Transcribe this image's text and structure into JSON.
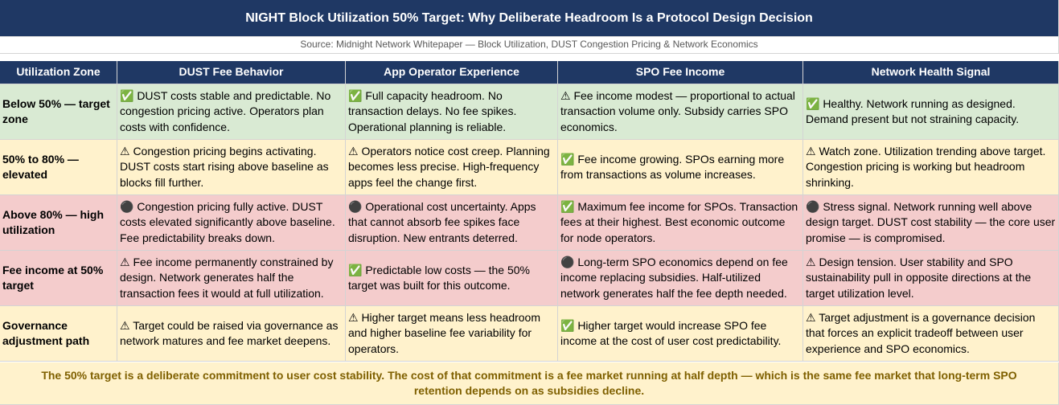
{
  "header": {
    "title": "NIGHT Block Utilization 50% Target: Why Deliberate Headroom Is a Protocol Design Decision",
    "source": "Source: Midnight Network Whitepaper — Block Utilization, DUST Congestion Pricing & Network Economics"
  },
  "table": {
    "columns": [
      "Utilization Zone",
      "DUST Fee Behavior",
      "App Operator Experience",
      "SPO Fee Income",
      "Network Health Signal"
    ],
    "rows": [
      [
        "Below 50% — target zone",
        "✅ DUST costs stable and predictable. No congestion pricing active. Operators plan costs with confidence.",
        "✅ Full capacity headroom. No transaction delays. No fee spikes. Operational planning is reliable.",
        "⚠ Fee income modest — proportional to actual transaction volume only. Subsidy carries SPO economics.",
        "✅ Healthy. Network running as designed. Demand present but not straining capacity."
      ],
      [
        "50% to 80% — elevated",
        "⚠ Congestion pricing begins activating. DUST costs start rising above baseline as blocks fill further.",
        "⚠ Operators notice cost creep. Planning becomes less precise. High-frequency apps feel the change first.",
        "✅ Fee income growing. SPOs earning more from transactions as volume increases.",
        "⚠ Watch zone. Utilization trending above target. Congestion pricing is working but headroom shrinking."
      ],
      [
        "Above 80% — high utilization",
        "⚫ Congestion pricing fully active. DUST costs elevated significantly above baseline. Fee predictability breaks down.",
        "⚫ Operational cost uncertainty. Apps that cannot absorb fee spikes face disruption. New entrants deterred.",
        "✅ Maximum fee income for SPOs. Transaction fees at their highest. Best economic outcome for node operators.",
        "⚫ Stress signal. Network running well above design target. DUST cost stability — the core user promise — is compromised."
      ],
      [
        "Fee income at 50% target",
        "⚠ Fee income permanently constrained by design. Network generates half the transaction fees it would at full utilization.",
        "✅ Predictable low costs — the 50% target was built for this outcome.",
        "⚫ Long-term SPO economics depend on fee income replacing subsidies. Half-utilized network generates half the fee depth needed.",
        "⚠ Design tension. User stability and SPO sustainability pull in opposite directions at the target utilization level."
      ],
      [
        "Governance adjustment path",
        "⚠ Target could be raised via governance as network matures and fee market deepens.",
        "⚠ Higher target means less headroom and higher baseline fee variability for operators.",
        "✅ Higher target would increase SPO fee income at the cost of user cost predictability.",
        "⚠ Target adjustment is a governance decision that forces an explicit tradeoff between user experience and SPO economics."
      ]
    ]
  },
  "footer": {
    "note": "The 50% target is a deliberate commitment to user cost stability. The cost of that commitment is a fee market running at half depth — which is the same fee market that long-term SPO retention depends on as subsidies decline."
  }
}
